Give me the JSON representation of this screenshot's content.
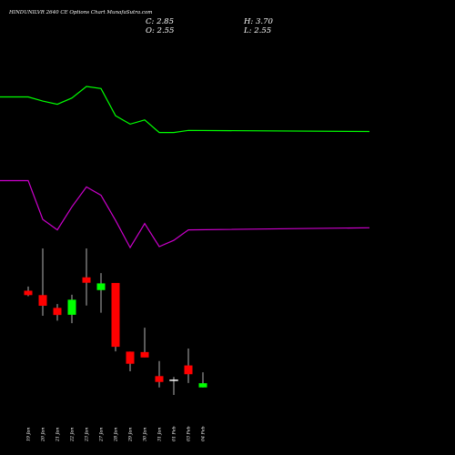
{
  "header": {
    "title": "HINDUNILVR 2640  CE Options  Chart MunafaSutra.com",
    "close": "C: 2.85",
    "open": "O: 2.55",
    "high": "H: 3.70",
    "low": "L: 2.55"
  },
  "chart_data": {
    "type": "candlestick",
    "categories": [
      "19 Jan",
      "20 Jan",
      "21 Jan",
      "22 Jan",
      "23 Jan",
      "27 Jan",
      "28 Jan",
      "29 Jan",
      "30 Jan",
      "31 Jan",
      "01 Feb",
      "03 Feb",
      "04 Feb"
    ],
    "candles": [
      {
        "open": 19.8,
        "high": 21.8,
        "low": 17.2,
        "close": 17.7,
        "color": "red"
      },
      {
        "open": 17.7,
        "high": 40.0,
        "low": 7.8,
        "close": 12.6,
        "color": "red"
      },
      {
        "open": 11.6,
        "high": 13.4,
        "low": 5.5,
        "close": 8.2,
        "color": "red"
      },
      {
        "open": 8.3,
        "high": 17.9,
        "low": 4.3,
        "close": 15.5,
        "color": "green"
      },
      {
        "open": 26.2,
        "high": 40.0,
        "low": 12.7,
        "close": 23.6,
        "color": "red"
      },
      {
        "open": 20.1,
        "high": 28.2,
        "low": 9.3,
        "close": 23.3,
        "color": "green"
      },
      {
        "open": 23.5,
        "high": 23.5,
        "low": -9.2,
        "close": -7.0,
        "color": "red"
      },
      {
        "open": -9.3,
        "high": -9.3,
        "low": -18.7,
        "close": -15.1,
        "color": "red"
      },
      {
        "open": -9.5,
        "high": 2.1,
        "low": -12.0,
        "close": -12.1,
        "color": "red"
      },
      {
        "open": -21.0,
        "high": -13.8,
        "low": -26.4,
        "close": -23.8,
        "color": "red"
      },
      {
        "open": -23.0,
        "high": -21.4,
        "low": -30.0,
        "close": -22.8,
        "color": "white"
      },
      {
        "open": -15.9,
        "high": -7.8,
        "low": -24.3,
        "close": -20.1,
        "color": "red"
      },
      {
        "open": -24.4,
        "high": -19.2,
        "low": -26.4,
        "close": -26.4,
        "color": "green"
      }
    ],
    "lines": [
      {
        "color": "#00ff00",
        "x": [
          -1,
          0,
          1,
          2,
          3,
          4,
          5,
          6,
          7,
          8,
          9,
          10,
          11,
          12
        ],
        "values": [
          150,
          150,
          148,
          146.5,
          149.5,
          155,
          154,
          141,
          137,
          139,
          133,
          133,
          134,
          133.5
        ]
      },
      {
        "color": "#cc00cc",
        "x": [
          -1,
          0,
          1,
          2,
          3,
          4,
          5,
          6,
          7,
          8,
          9,
          10,
          11,
          12
        ],
        "values": [
          110,
          110,
          91.5,
          86.5,
          97.5,
          107,
          103,
          91,
          78,
          89.5,
          78.5,
          81.5,
          86.5,
          87.5
        ]
      }
    ],
    "colors": {
      "background": "#000000",
      "up": "#00ff00",
      "down": "#ff0000",
      "wick": "#ffffff",
      "text": "#ffffff"
    },
    "grid": false,
    "legend": "none"
  }
}
